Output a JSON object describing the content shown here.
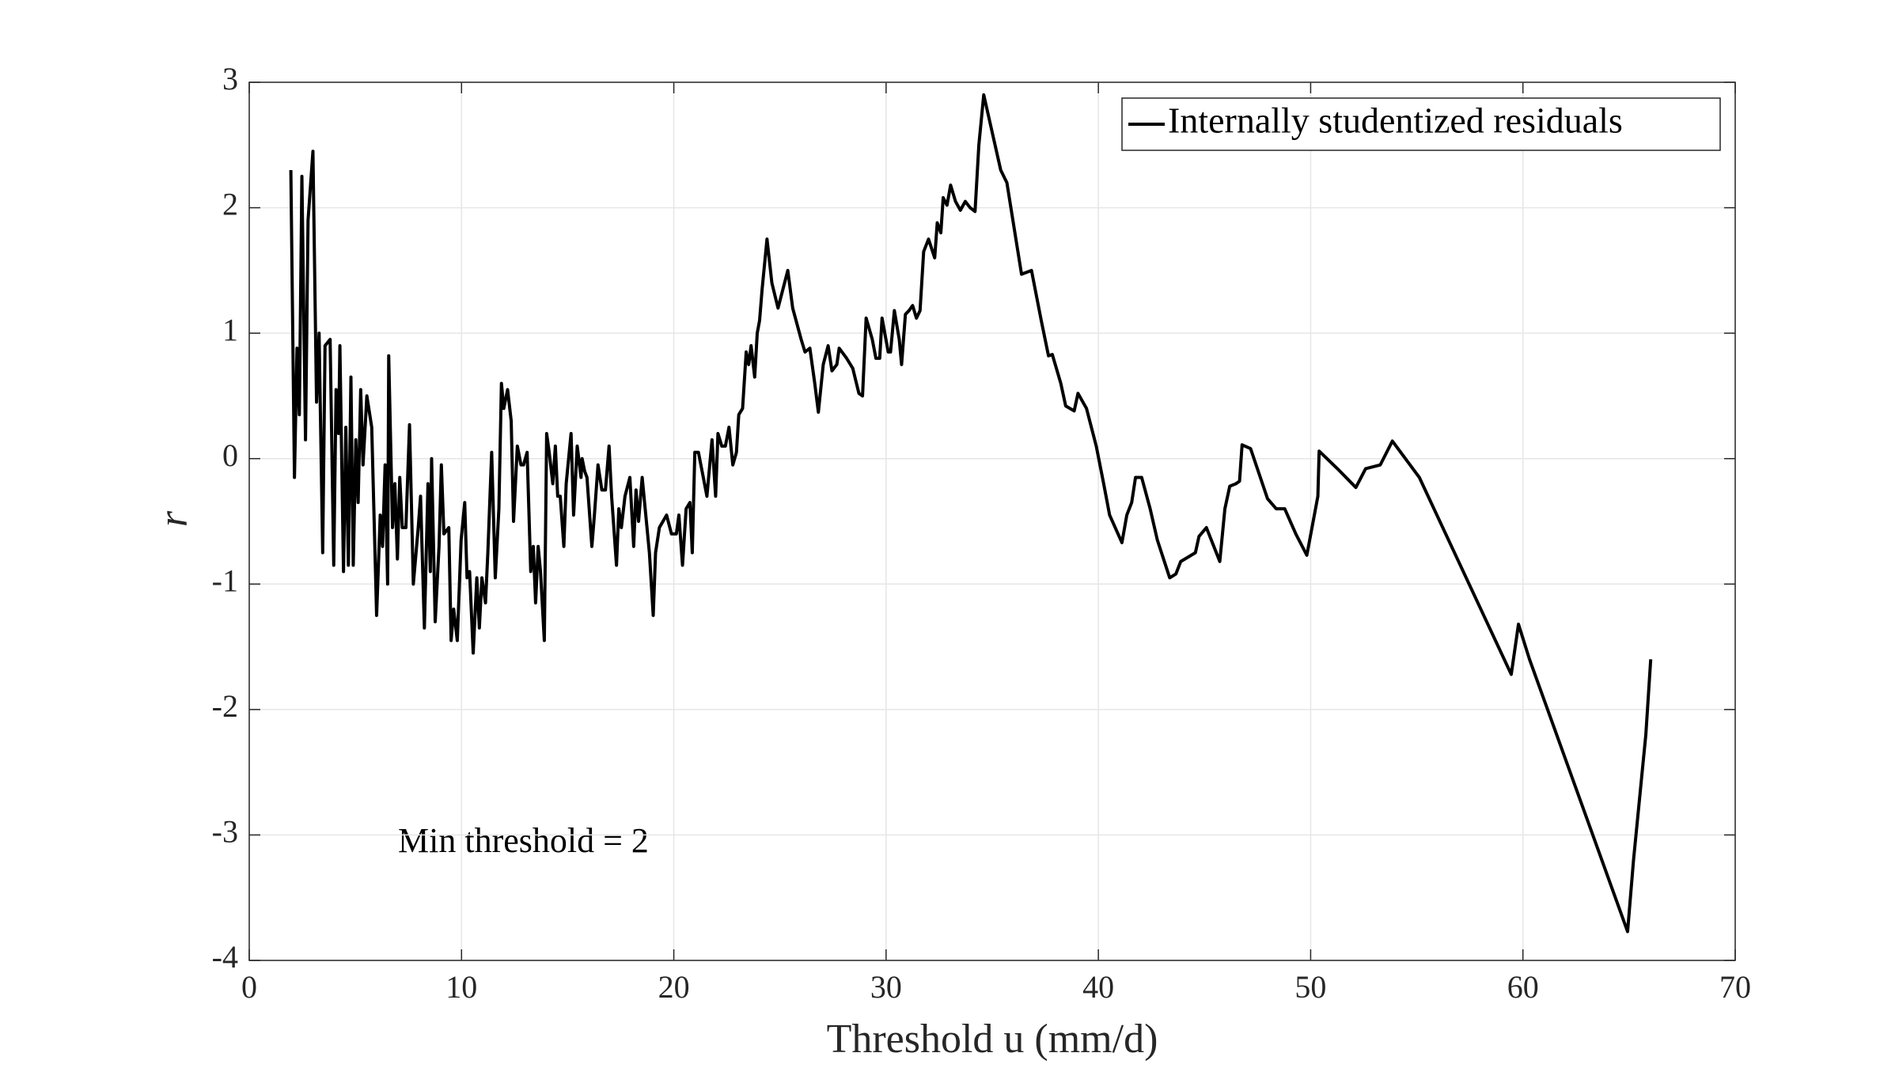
{
  "chart_data": {
    "type": "line",
    "xlabel": "Threshold u (mm/d)",
    "ylabel": "r",
    "annotation": "Min threshold = 2",
    "xlim": [
      0,
      70
    ],
    "xticks": [
      0,
      10,
      20,
      30,
      40,
      50,
      60,
      70
    ],
    "ylim": [
      -4,
      3
    ],
    "yticks": [
      -4,
      -3,
      -2,
      -1,
      0,
      1,
      2,
      3
    ],
    "grid": true,
    "legend": "upper right",
    "x": [
      1.96,
      2.13,
      2.25,
      2.36,
      2.48,
      2.65,
      2.77,
      3.0,
      3.17,
      3.29,
      3.46,
      3.57,
      3.81,
      3.98,
      4.09,
      4.21,
      4.27,
      4.44,
      4.55,
      4.67,
      4.79,
      4.9,
      5.02,
      5.13,
      5.25,
      5.36,
      5.54,
      5.77,
      6.0,
      6.17,
      6.28,
      6.4,
      6.52,
      6.57,
      6.75,
      6.86,
      6.98,
      7.09,
      7.21,
      7.38,
      7.55,
      7.73,
      7.96,
      8.07,
      8.25,
      8.42,
      8.53,
      8.59,
      8.76,
      8.94,
      9.05,
      9.17,
      9.4,
      9.51,
      9.63,
      9.8,
      9.98,
      10.15,
      10.26,
      10.38,
      10.55,
      10.72,
      10.84,
      10.96,
      11.13,
      11.24,
      11.42,
      11.59,
      11.76,
      11.88,
      11.99,
      12.17,
      12.34,
      12.45,
      12.63,
      12.8,
      12.92,
      13.09,
      13.26,
      13.38,
      13.49,
      13.61,
      13.72,
      13.9,
      14.01,
      14.13,
      14.3,
      14.42,
      14.53,
      14.65,
      14.82,
      14.93,
      15.16,
      15.28,
      15.45,
      15.63,
      15.68,
      15.8,
      15.91,
      16.14,
      16.26,
      16.43,
      16.61,
      16.78,
      16.95,
      17.07,
      17.3,
      17.41,
      17.53,
      17.7,
      17.93,
      18.11,
      18.22,
      18.34,
      18.51,
      18.68,
      18.85,
      19.03,
      19.14,
      19.32,
      19.66,
      19.89,
      20.12,
      20.24,
      20.41,
      20.58,
      20.76,
      20.87,
      20.99,
      21.16,
      21.39,
      21.56,
      21.8,
      21.97,
      22.08,
      22.26,
      22.43,
      22.6,
      22.78,
      22.95,
      23.06,
      23.24,
      23.41,
      23.53,
      23.64,
      23.81,
      23.93,
      24.04,
      24.16,
      24.39,
      24.62,
      24.91,
      25.14,
      25.37,
      25.6,
      26.0,
      26.18,
      26.41,
      26.64,
      26.81,
      27.04,
      27.27,
      27.45,
      27.68,
      27.79,
      28.14,
      28.43,
      28.72,
      28.89,
      29.06,
      29.35,
      29.52,
      29.7,
      29.81,
      30.1,
      30.21,
      30.39,
      30.62,
      30.73,
      30.91,
      31.08,
      31.25,
      31.43,
      31.6,
      31.77,
      32.0,
      32.29,
      32.41,
      32.58,
      32.69,
      32.87,
      33.04,
      33.27,
      33.5,
      33.73,
      33.96,
      34.19,
      34.37,
      34.6,
      35.0,
      35.4,
      35.69,
      36.38,
      36.85,
      37.31,
      37.65,
      37.83,
      38.23,
      38.46,
      38.86,
      39.04,
      39.44,
      39.9,
      40.25,
      40.53,
      41.11,
      41.34,
      41.57,
      41.75,
      42.04,
      42.44,
      42.78,
      43.36,
      43.65,
      43.88,
      44.28,
      44.57,
      44.74,
      45.09,
      45.44,
      45.72,
      45.96,
      46.19,
      46.48,
      46.65,
      46.77,
      47.17,
      47.63,
      47.97,
      48.38,
      48.78,
      49.3,
      49.82,
      50.34,
      50.4,
      51.26,
      52.13,
      52.59,
      53.28,
      53.85,
      55.12,
      59.45,
      59.79,
      60.31,
      64.93,
      65.21,
      65.79,
      66.02
    ],
    "series": [
      {
        "name": "Internally studentized residuals",
        "color": "#000000",
        "values": [
          2.3,
          -0.15,
          0.88,
          0.35,
          2.25,
          0.15,
          1.9,
          2.45,
          0.45,
          1.0,
          -0.75,
          0.9,
          0.95,
          -0.85,
          0.55,
          0.2,
          0.9,
          -0.9,
          0.25,
          -0.85,
          0.65,
          -0.85,
          0.15,
          -0.35,
          0.55,
          -0.05,
          0.5,
          0.25,
          -1.25,
          -0.45,
          -0.7,
          -0.05,
          -1.0,
          0.82,
          -0.55,
          -0.2,
          -0.8,
          -0.15,
          -0.55,
          -0.55,
          0.27,
          -1.0,
          -0.55,
          -0.3,
          -1.35,
          -0.2,
          -0.9,
          0.0,
          -1.3,
          -0.7,
          -0.05,
          -0.6,
          -0.55,
          -1.45,
          -1.2,
          -1.45,
          -0.65,
          -0.35,
          -0.95,
          -0.9,
          -1.55,
          -0.95,
          -1.35,
          -0.95,
          -1.15,
          -0.75,
          0.05,
          -0.95,
          -0.4,
          0.6,
          0.4,
          0.55,
          0.3,
          -0.5,
          0.1,
          -0.05,
          -0.05,
          0.05,
          -0.9,
          -0.7,
          -1.15,
          -0.7,
          -0.9,
          -1.45,
          0.2,
          0.05,
          -0.2,
          0.1,
          -0.3,
          -0.3,
          -0.7,
          -0.2,
          0.2,
          -0.45,
          0.1,
          -0.15,
          0.0,
          -0.1,
          -0.15,
          -0.7,
          -0.45,
          -0.05,
          -0.25,
          -0.25,
          0.1,
          -0.3,
          -0.85,
          -0.4,
          -0.55,
          -0.3,
          -0.15,
          -0.7,
          -0.25,
          -0.5,
          -0.15,
          -0.45,
          -0.75,
          -1.25,
          -0.75,
          -0.55,
          -0.45,
          -0.6,
          -0.6,
          -0.45,
          -0.85,
          -0.4,
          -0.35,
          -0.75,
          0.05,
          0.05,
          -0.15,
          -0.3,
          0.15,
          -0.3,
          0.2,
          0.1,
          0.1,
          0.25,
          -0.05,
          0.05,
          0.35,
          0.4,
          0.85,
          0.75,
          0.9,
          0.65,
          1.0,
          1.1,
          1.35,
          1.75,
          1.4,
          1.2,
          1.35,
          1.5,
          1.2,
          0.95,
          0.85,
          0.88,
          0.6,
          0.37,
          0.75,
          0.9,
          0.7,
          0.75,
          0.88,
          0.8,
          0.72,
          0.52,
          0.5,
          1.12,
          0.95,
          0.8,
          0.8,
          1.12,
          0.85,
          0.85,
          1.18,
          0.95,
          0.75,
          1.15,
          1.18,
          1.22,
          1.12,
          1.18,
          1.65,
          1.75,
          1.6,
          1.88,
          1.8,
          2.08,
          2.02,
          2.18,
          2.05,
          1.98,
          2.05,
          2.0,
          1.97,
          2.5,
          2.9,
          2.6,
          2.3,
          2.2,
          1.47,
          1.5,
          1.1,
          0.82,
          0.83,
          0.6,
          0.42,
          0.38,
          0.52,
          0.4,
          0.1,
          -0.2,
          -0.45,
          -0.67,
          -0.45,
          -0.35,
          -0.15,
          -0.15,
          -0.4,
          -0.65,
          -0.95,
          -0.92,
          -0.82,
          -0.78,
          -0.75,
          -0.62,
          -0.55,
          -0.7,
          -0.82,
          -0.4,
          -0.22,
          -0.2,
          -0.18,
          0.11,
          0.08,
          -0.15,
          -0.32,
          -0.4,
          -0.4,
          -0.6,
          -0.77,
          -0.3,
          0.06,
          -0.08,
          -0.23,
          -0.08,
          -0.05,
          0.14,
          -0.15,
          -1.72,
          -1.32,
          -1.6,
          -3.77,
          -3.2,
          -2.2,
          -1.6
        ]
      }
    ]
  }
}
